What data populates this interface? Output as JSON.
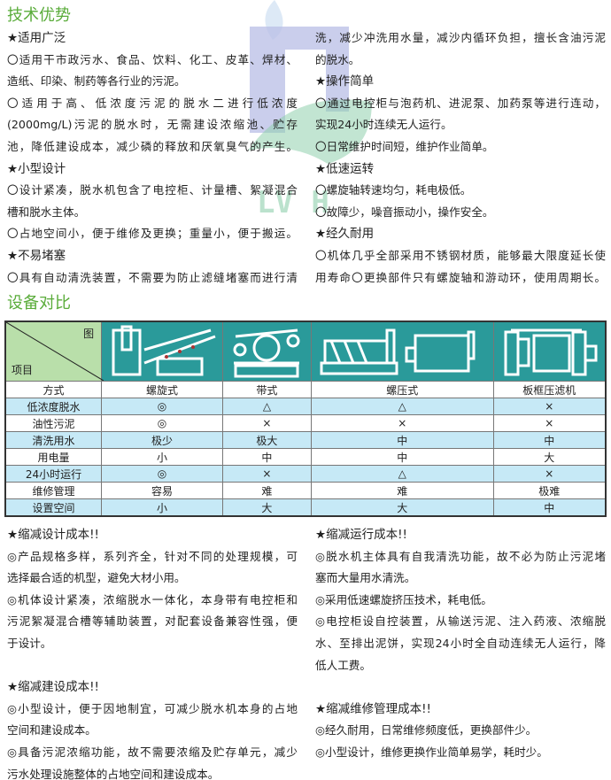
{
  "advantages": {
    "title": "技术优势",
    "left": [
      "★适用广泛",
      "〇适用干市政污水、食品、饮料、化工、皮革、焊材、",
      "造纸、印染、制药等各行业的污泥。",
      "〇适用于高、低浓度污泥的脱水二进行低浓度",
      "(2000mg/L)污泥的脱水时，无需建设浓缩池、贮存",
      "池，降低建设成本，减少磷的释放和厌氧臭气的产生。",
      "★小型设计",
      "〇设计紧凑，脱水机包含了电控柜、计量槽、絮凝混合",
      "槽和脱水主体。",
      "〇占地空间小，便于维修及更换；重量小，便于搬运。",
      "★不易堵塞",
      "〇具有自动清洗装置，不需要为防止滤缝堵塞而进行清"
    ],
    "right": [
      "洗，减少冲洗用水量，减沙内循环负担，擅长含油污泥",
      "的脱水。",
      "★操作简单",
      "〇通过电控柜与泡药机、进泥泵、加药泵等进行连动，",
      "实现24小时连续无人运行。",
      "〇日常维护时间短，维护作业简单。",
      "★低速运转",
      "〇螺旋轴转速均匀，耗电极低。",
      "〇故障少，噪音振动小，操作安全。",
      "★经久耐用",
      "〇机体几乎全部采用不锈钢材质，能够最大限度延长使",
      "用寿命〇更换部件只有螺旋轴和游动环，使用周期长。"
    ],
    "watermark": "LV HUAN",
    "colors": {
      "title": "#5aac3a",
      "logo_purple": "#b8bde6",
      "logo_green": "#8fd0ad"
    }
  },
  "comparison": {
    "title": "设备对比",
    "corner_top": "图",
    "corner_bottom": "项目",
    "header": [
      "方式",
      "螺旋式",
      "带式",
      "螺压式",
      "板框压滤机"
    ],
    "rows": [
      [
        "低浓度脱水",
        "◎",
        "△",
        "△",
        "×"
      ],
      [
        "油性污泥",
        "◎",
        "×",
        "×",
        "×"
      ],
      [
        "清洗用水",
        "极少",
        "极大",
        "中",
        "中"
      ],
      [
        "用电量",
        "小",
        "中",
        "中",
        "大"
      ],
      [
        "24小时运行",
        "◎",
        "×",
        "△",
        "×"
      ],
      [
        "维修管理",
        "容易",
        "难",
        "难",
        "极难"
      ],
      [
        "设置空间",
        "小",
        "大",
        "大",
        "中"
      ]
    ],
    "colors": {
      "image_row": "#2a9a9a",
      "corner": "#b9dfaa",
      "alt_row": "#c6e9f6"
    }
  },
  "costs": {
    "left": [
      "★缩减设计成本!!",
      "◎产品规格多样，系列齐全，针对不同的处理规模，可",
      "选择最合适的机型，避免大材小用。",
      "◎机体设计紧凑，浓缩脱水一体化，本身带有电控柜和",
      "污泥絮凝混合槽等辅助装置，对配套设备兼容性强，便",
      "于设计。",
      "",
      "★缩减建设成本!!",
      "◎小型设计，便于因地制宜，可减少脱水机本身的占地",
      "空间和建设成本。",
      "◎具备污泥浓缩功能，故不需要浓缩及贮存单元，减少",
      "污水处理设施整体的占地空间和建设成本。"
    ],
    "right": [
      "★缩减运行成本!!",
      "◎脱水机主体具有自我清洗功能，故不必为防止污泥堵",
      "塞而大量用水清洗。",
      "◎采用低速螺旋挤压技术，耗电低。",
      "◎电控柜设自控装置，从输送污泥、注入药液、浓缩脱",
      "水、至排出泥饼，实现24小时全自动连续无人运行，降",
      "低人工费。",
      "",
      "★缩减维修管理成本!!",
      "◎经久耐用，日常维修频度低，更换部件少。",
      "◎小型设计，维修更换作业简单易学，耗时少。"
    ]
  }
}
